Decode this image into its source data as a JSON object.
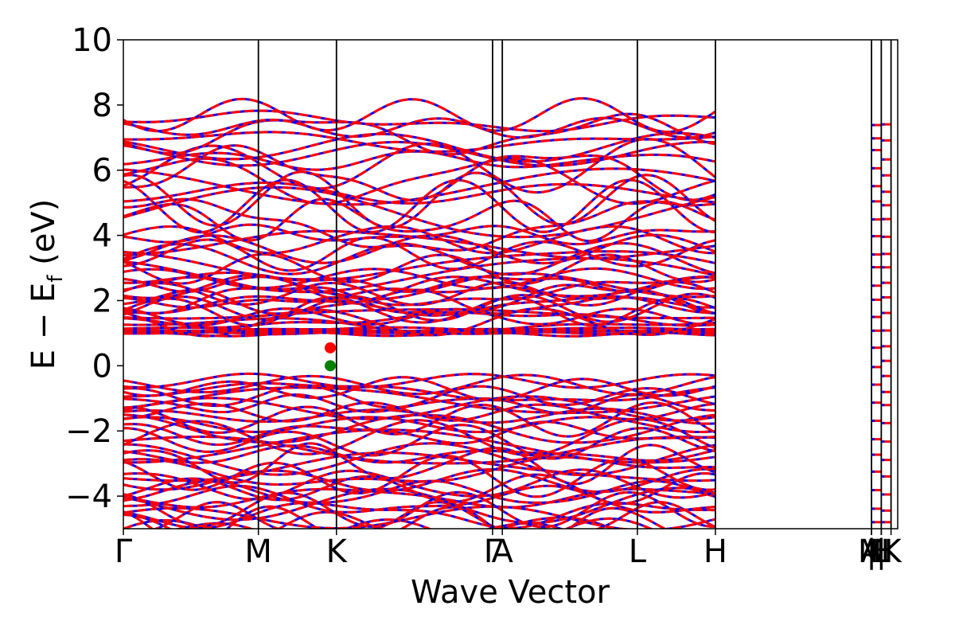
{
  "chart_data": {
    "type": "line",
    "xlabel": "Wave Vector",
    "ylabel": {
      "main": "E − E",
      "subscript": "f",
      "unit": " (eV)"
    },
    "ylim": [
      -5,
      10
    ],
    "yticks": [
      10,
      8,
      6,
      4,
      2,
      0,
      -2,
      -4
    ],
    "ytick_labels": [
      "10",
      "8",
      "6",
      "4",
      "2",
      "0",
      "−2",
      "−4"
    ],
    "kpoints": [
      {
        "label": "Γ",
        "k": 0.0
      },
      {
        "label": "M",
        "k": 0.1744
      },
      {
        "label": "K",
        "k": 0.2752
      },
      {
        "label": "Γ",
        "k": 0.4768
      },
      {
        "label": "A",
        "k": 0.4894
      },
      {
        "label": "L",
        "k": 0.6638
      },
      {
        "label": "H",
        "k": 0.7646
      },
      {
        "label": "A",
        "k": 0.9662
      },
      {
        "label": "M",
        "k": 0.9662
      },
      {
        "label": "|",
        "k": 0.9662
      },
      {
        "label": "L",
        "k": 0.9788
      },
      {
        "label": "H",
        "k": 0.9788
      },
      {
        "label": "|",
        "k": 0.9788
      },
      {
        "label": "K",
        "k": 0.9914
      }
    ],
    "vlines_k": [
      0.1744,
      0.2752,
      0.4768,
      0.4894,
      0.6638,
      0.7646,
      0.9662,
      0.9788,
      0.9914
    ],
    "series": [
      {
        "color": "#0000ff",
        "style": "solid"
      },
      {
        "color": "#ff0000",
        "style": "dashed"
      }
    ],
    "markers": [
      {
        "name": "CBM",
        "k": 0.2672,
        "energy": 0.55,
        "color": "#ff0000"
      },
      {
        "name": "VBM",
        "k": 0.2672,
        "energy": 0.0,
        "color": "#008000"
      }
    ],
    "grid": false,
    "legend": "none"
  }
}
